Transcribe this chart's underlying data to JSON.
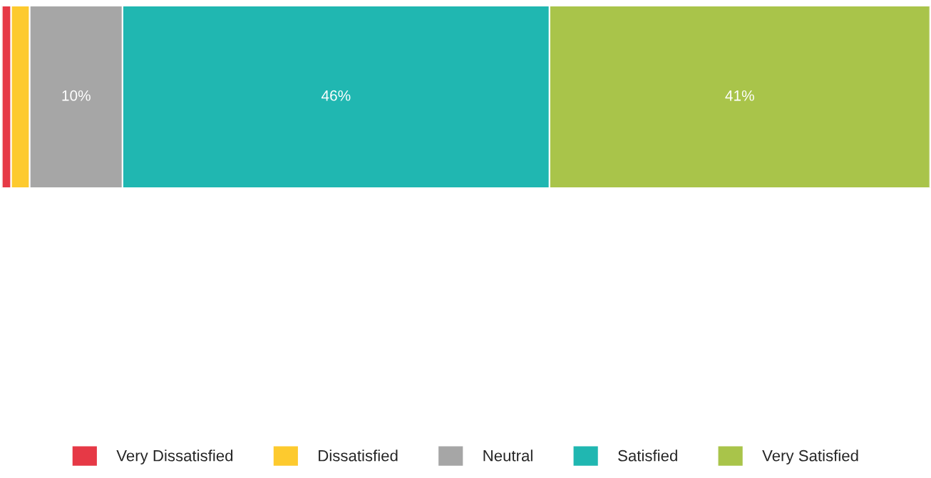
{
  "chart_data": {
    "type": "bar",
    "orientation": "horizontal",
    "stacked": true,
    "categories": [
      null
    ],
    "xlim": [
      0,
      100
    ],
    "tick_labels": false,
    "legend": "bottom",
    "series": [
      {
        "name": "Very Dissatisfied",
        "color": "#e63946",
        "values": [
          1
        ],
        "value_labels": [
          null
        ]
      },
      {
        "name": "Dissatisfied",
        "color": "#fdca2e",
        "values": [
          2
        ],
        "value_labels": [
          null
        ]
      },
      {
        "name": "Neutral",
        "color": "#a6a6a6",
        "values": [
          10
        ],
        "value_labels": [
          "10%"
        ]
      },
      {
        "name": "Satisfied",
        "color": "#20b7b1",
        "values": [
          46
        ],
        "value_labels": [
          "46%"
        ]
      },
      {
        "name": "Very Satisfied",
        "color": "#a9c44a",
        "values": [
          41
        ],
        "value_labels": [
          "41%"
        ]
      }
    ]
  }
}
